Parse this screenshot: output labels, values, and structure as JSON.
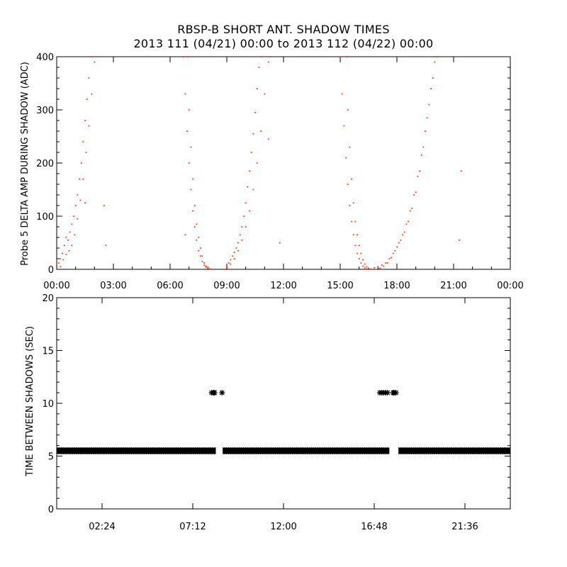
{
  "title": "RBSP-B SHORT ANT. SHADOW TIMES",
  "subtitle": "2013 111 (04/21) 00:00 to 2013 112 (04/22) 00:00",
  "colors": {
    "top_series": "#ff2200",
    "bottom_series": "#000000",
    "axes": "#000000"
  },
  "chart_data": [
    {
      "type": "scatter",
      "ylabel": "Probe 5 DELTA AMP DURING SHADOW (ADC)",
      "xlabel": "",
      "x_unit": "hours since 2013-04-21 00:00",
      "xlim": [
        0,
        24
      ],
      "ylim": [
        0,
        400
      ],
      "x_tick_labels": [
        "00:00",
        "03:00",
        "06:00",
        "09:00",
        "12:00",
        "15:00",
        "18:00",
        "21:00",
        "00:00"
      ],
      "y_tick_labels": [
        "0",
        "100",
        "200",
        "300",
        "400"
      ],
      "series": [
        {
          "points": [
            [
              0.0,
              5
            ],
            [
              0.1,
              12
            ],
            [
              0.2,
              20
            ],
            [
              0.3,
              30
            ],
            [
              0.4,
              45
            ],
            [
              0.5,
              60
            ],
            [
              0.6,
              55
            ],
            [
              0.7,
              70
            ],
            [
              0.8,
              85
            ],
            [
              0.9,
              100
            ],
            [
              1.0,
              120
            ],
            [
              1.1,
              140
            ],
            [
              1.2,
              170
            ],
            [
              1.3,
              200
            ],
            [
              1.4,
              240
            ],
            [
              1.5,
              280
            ],
            [
              1.6,
              320
            ],
            [
              1.7,
              360
            ],
            [
              1.8,
              400
            ],
            [
              0.2,
              5
            ],
            [
              0.35,
              18
            ],
            [
              0.5,
              28
            ],
            [
              0.65,
              35
            ],
            [
              0.8,
              45
            ],
            [
              0.95,
              65
            ],
            [
              1.1,
              95
            ],
            [
              1.25,
              130
            ],
            [
              1.4,
              170
            ],
            [
              1.55,
              220
            ],
            [
              1.7,
              270
            ],
            [
              1.85,
              330
            ],
            [
              2.0,
              390
            ],
            [
              6.7,
              400
            ],
            [
              6.8,
              330
            ],
            [
              6.9,
              260
            ],
            [
              7.0,
              200
            ],
            [
              7.1,
              150
            ],
            [
              7.2,
              110
            ],
            [
              7.3,
              80
            ],
            [
              7.4,
              55
            ],
            [
              7.5,
              35
            ],
            [
              7.6,
              25
            ],
            [
              7.7,
              15
            ],
            [
              7.8,
              8
            ],
            [
              7.9,
              4
            ],
            [
              8.0,
              2
            ],
            [
              8.1,
              1
            ],
            [
              6.9,
              400
            ],
            [
              7.0,
              300
            ],
            [
              7.1,
              230
            ],
            [
              7.2,
              170
            ],
            [
              7.3,
              120
            ],
            [
              7.4,
              85
            ],
            [
              7.5,
              60
            ],
            [
              7.6,
              40
            ],
            [
              7.7,
              25
            ],
            [
              7.8,
              12
            ],
            [
              7.9,
              6
            ],
            [
              8.0,
              3
            ],
            [
              8.85,
              0
            ],
            [
              9.0,
              5
            ],
            [
              9.1,
              12
            ],
            [
              9.2,
              18
            ],
            [
              9.3,
              25
            ],
            [
              9.4,
              32
            ],
            [
              9.5,
              40
            ],
            [
              9.6,
              50
            ],
            [
              9.7,
              65
            ],
            [
              9.8,
              80
            ],
            [
              9.9,
              100
            ],
            [
              10.0,
              125
            ],
            [
              10.1,
              155
            ],
            [
              10.2,
              185
            ],
            [
              10.3,
              220
            ],
            [
              10.4,
              255
            ],
            [
              10.5,
              295
            ],
            [
              10.6,
              340
            ],
            [
              10.7,
              380
            ],
            [
              10.8,
              400
            ],
            [
              9.0,
              2
            ],
            [
              9.2,
              10
            ],
            [
              9.4,
              20
            ],
            [
              9.6,
              35
            ],
            [
              9.8,
              55
            ],
            [
              10.0,
              80
            ],
            [
              10.2,
              110
            ],
            [
              10.4,
              150
            ],
            [
              10.6,
              200
            ],
            [
              10.8,
              260
            ],
            [
              11.0,
              330
            ],
            [
              11.2,
              390
            ],
            [
              1.5,
              125
            ],
            [
              2.5,
              120
            ],
            [
              2.6,
              45
            ],
            [
              6.8,
              65
            ],
            [
              11.8,
              50
            ],
            [
              11.2,
              245
            ],
            [
              15.0,
              400
            ],
            [
              15.1,
              330
            ],
            [
              15.2,
              270
            ],
            [
              15.3,
              210
            ],
            [
              15.4,
              160
            ],
            [
              15.5,
              120
            ],
            [
              15.6,
              90
            ],
            [
              15.7,
              65
            ],
            [
              15.8,
              45
            ],
            [
              15.9,
              30
            ],
            [
              16.0,
              20
            ],
            [
              16.1,
              12
            ],
            [
              16.2,
              6
            ],
            [
              16.3,
              3
            ],
            [
              16.4,
              1
            ],
            [
              15.3,
              400
            ],
            [
              15.4,
              300
            ],
            [
              15.5,
              230
            ],
            [
              15.6,
              170
            ],
            [
              15.7,
              125
            ],
            [
              15.8,
              90
            ],
            [
              15.9,
              65
            ],
            [
              16.0,
              45
            ],
            [
              16.1,
              30
            ],
            [
              16.2,
              18
            ],
            [
              16.3,
              10
            ],
            [
              16.4,
              5
            ],
            [
              16.5,
              2
            ],
            [
              16.6,
              0
            ],
            [
              16.8,
              3
            ],
            [
              17.0,
              5
            ],
            [
              17.2,
              8
            ],
            [
              17.4,
              12
            ],
            [
              17.6,
              20
            ],
            [
              17.8,
              30
            ],
            [
              18.0,
              42
            ],
            [
              18.2,
              55
            ],
            [
              18.4,
              70
            ],
            [
              18.6,
              90
            ],
            [
              18.8,
              115
            ],
            [
              19.0,
              145
            ],
            [
              19.2,
              185
            ],
            [
              19.4,
              230
            ],
            [
              19.6,
              285
            ],
            [
              19.8,
              340
            ],
            [
              20.0,
              390
            ],
            [
              17.1,
              2
            ],
            [
              17.3,
              6
            ],
            [
              17.5,
              12
            ],
            [
              17.7,
              22
            ],
            [
              17.9,
              35
            ],
            [
              18.1,
              50
            ],
            [
              18.3,
              65
            ],
            [
              18.5,
              85
            ],
            [
              18.7,
              110
            ],
            [
              18.9,
              140
            ],
            [
              19.1,
              175
            ],
            [
              19.3,
              215
            ],
            [
              19.5,
              260
            ],
            [
              19.7,
              310
            ],
            [
              19.9,
              360
            ],
            [
              20.1,
              400
            ],
            [
              21.3,
              55
            ],
            [
              21.4,
              185
            ]
          ]
        }
      ]
    },
    {
      "type": "scatter",
      "ylabel": "TIME BETWEEN SHADOWS (SEC)",
      "xlabel": "",
      "x_unit": "hours since 2013-04-21 00:00",
      "xlim": [
        0,
        24
      ],
      "ylim": [
        0,
        20
      ],
      "x_tick_labels": [
        "02:24",
        "07:12",
        "12:00",
        "16:48",
        "21:36"
      ],
      "y_tick_labels": [
        "0",
        "5",
        "10",
        "15",
        "20"
      ],
      "series": [
        {
          "marker": "asterisk",
          "segments_y5_5": [
            [
              0.0,
              8.4
            ],
            [
              8.8,
              17.6
            ],
            [
              18.1,
              24.0
            ]
          ],
          "points": [
            [
              8.2,
              11
            ],
            [
              8.3,
              11
            ],
            [
              8.35,
              11
            ],
            [
              8.75,
              11
            ],
            [
              17.1,
              11
            ],
            [
              17.2,
              11
            ],
            [
              17.3,
              11
            ],
            [
              17.4,
              11
            ],
            [
              17.5,
              11
            ],
            [
              17.8,
              11
            ],
            [
              17.85,
              11
            ],
            [
              17.95,
              11
            ]
          ]
        }
      ]
    }
  ]
}
